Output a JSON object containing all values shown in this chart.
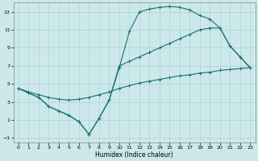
{
  "xlabel": "Humidex (Indice chaleur)",
  "bg_color": "#cce8ea",
  "grid_color": "#aad4d8",
  "line_color": "#1a7070",
  "xlim": [
    -0.5,
    23.5
  ],
  "ylim": [
    -1.5,
    14.0
  ],
  "xticks": [
    0,
    1,
    2,
    3,
    4,
    5,
    6,
    7,
    8,
    9,
    10,
    11,
    12,
    13,
    14,
    15,
    16,
    17,
    18,
    19,
    20,
    21,
    22,
    23
  ],
  "yticks": [
    -1,
    1,
    3,
    5,
    7,
    9,
    11,
    13
  ],
  "line1_x": [
    0,
    1,
    2,
    3,
    4,
    5,
    6,
    7,
    8,
    9,
    10,
    11,
    12,
    13,
    14,
    15,
    16,
    17,
    18,
    19,
    20,
    21,
    22,
    23
  ],
  "line1_y": [
    4.5,
    4.0,
    3.5,
    2.5,
    2.0,
    1.5,
    0.8,
    -0.6,
    1.2,
    3.2,
    6.8,
    10.8,
    13.0,
    13.3,
    13.5,
    13.6,
    13.5,
    13.2,
    12.6,
    12.2,
    11.2,
    9.2,
    8.0,
    6.8
  ],
  "line2_x": [
    0,
    1,
    2,
    3,
    4,
    5,
    6,
    7,
    8,
    9,
    10,
    11,
    12,
    13,
    14,
    15,
    16,
    17,
    18,
    19,
    20,
    21,
    22,
    23
  ],
  "line2_y": [
    4.5,
    4.0,
    3.5,
    2.5,
    2.0,
    1.5,
    0.8,
    -0.6,
    1.2,
    3.2,
    7.0,
    7.5,
    8.0,
    8.5,
    9.0,
    9.5,
    10.0,
    10.5,
    11.0,
    11.2,
    11.2,
    9.2,
    8.0,
    6.8
  ],
  "line3_x": [
    0,
    1,
    2,
    3,
    4,
    5,
    6,
    7,
    8,
    9,
    10,
    11,
    12,
    13,
    14,
    15,
    16,
    17,
    18,
    19,
    20,
    21,
    22,
    23
  ],
  "line3_y": [
    4.5,
    4.1,
    3.8,
    3.5,
    3.3,
    3.2,
    3.3,
    3.5,
    3.8,
    4.1,
    4.5,
    4.8,
    5.1,
    5.3,
    5.5,
    5.7,
    5.9,
    6.0,
    6.2,
    6.3,
    6.5,
    6.6,
    6.7,
    6.8
  ]
}
